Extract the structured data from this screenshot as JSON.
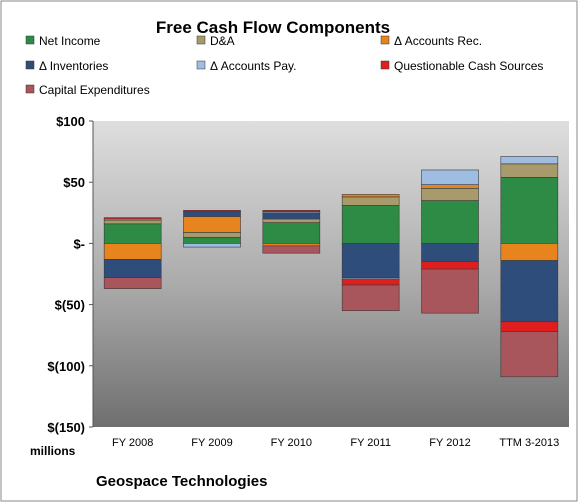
{
  "chart_data": {
    "type": "bar",
    "stacked": true,
    "title": "Free Cash Flow Components",
    "footer": "Geospace Technologies",
    "unit_label": "millions",
    "categories": [
      "FY 2008",
      "FY 2009",
      "FY 2010",
      "FY 2011",
      "FY 2012",
      "TTM 3-2013"
    ],
    "ylim": [
      -150,
      100
    ],
    "yticks": [
      100,
      50,
      0,
      -50,
      -100,
      -150
    ],
    "ytick_labels": [
      "$100",
      "$50",
      "$-",
      "$(50)",
      "$(100)",
      "$(150)"
    ],
    "legend_position": "top",
    "grid": false,
    "series": [
      {
        "name": "Net Income",
        "color": "#2e8b46",
        "values": [
          16,
          5,
          17,
          31,
          35,
          54
        ]
      },
      {
        "name": "D&A",
        "color": "#a89a6a",
        "values": [
          3,
          4,
          3,
          7,
          10,
          11
        ]
      },
      {
        "name": "Δ Accounts Rec.",
        "color": "#e8841e",
        "values": [
          -13,
          13,
          -2,
          2,
          3,
          -14
        ]
      },
      {
        "name": "Δ Inventories",
        "color": "#2e4d7b",
        "values": [
          -15,
          4,
          5,
          -28,
          -15,
          -50
        ]
      },
      {
        "name": "Δ Accounts Pay.",
        "color": "#9fbde0",
        "values": [
          1,
          -3,
          1,
          -1,
          12,
          6
        ]
      },
      {
        "name": "Questionable Cash Sources",
        "color": "#e01e1e",
        "values": [
          1,
          1,
          1,
          -5,
          -6,
          -8
        ]
      },
      {
        "name": "Capital Expenditures",
        "color": "#a8555c",
        "values": [
          -9,
          0,
          -6,
          -21,
          -36,
          -37
        ]
      }
    ]
  }
}
